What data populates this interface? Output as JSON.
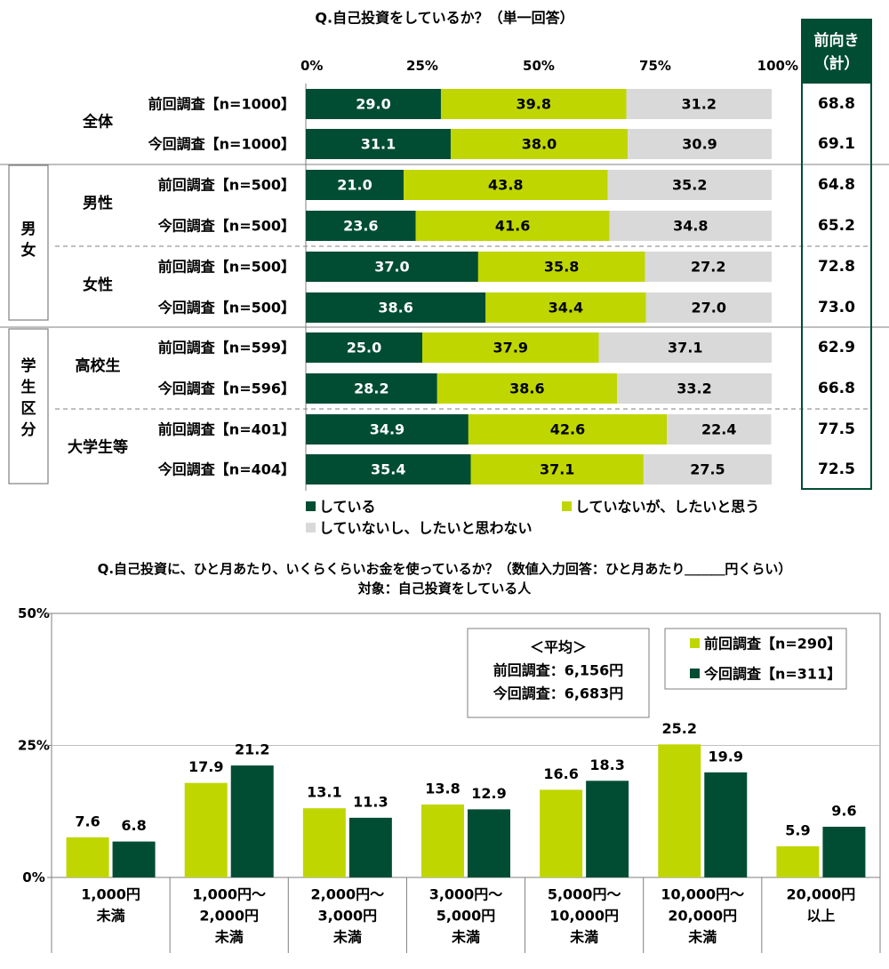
{
  "colors": {
    "dark_green": "#004d33",
    "yellow_green": "#bfd600",
    "light_gray": "#d9d9d9",
    "frame_green": "#004d33"
  },
  "chart_data": [
    {
      "type": "bar",
      "orientation": "horizontal-stacked-100",
      "title": "Q.自己投資をしているか？（単一回答）",
      "x_ticks": [
        "0%",
        "25%",
        "50%",
        "75%",
        "100%"
      ],
      "xlim": [
        0,
        100
      ],
      "legend": [
        "している",
        "していないが、したいと思う",
        "していないし、したいと思わない"
      ],
      "legend_position": "bottom",
      "positive_header": "前向き（計）",
      "groups": [
        {
          "label": "",
          "subgroups": [
            {
              "label": "全体",
              "rows": [
                {
                  "label": "前回調査【n=1000】",
                  "values": [
                    "29.0",
                    "39.8",
                    "31.2"
                  ],
                  "total": "68.8"
                },
                {
                  "label": "今回調査【n=1000】",
                  "values": [
                    "31.1",
                    "38.0",
                    "30.9"
                  ],
                  "total": "69.1"
                }
              ]
            }
          ]
        },
        {
          "label": "男女",
          "subgroups": [
            {
              "label": "男性",
              "rows": [
                {
                  "label": "前回調査【n=500】",
                  "values": [
                    "21.0",
                    "43.8",
                    "35.2"
                  ],
                  "total": "64.8"
                },
                {
                  "label": "今回調査【n=500】",
                  "values": [
                    "23.6",
                    "41.6",
                    "34.8"
                  ],
                  "total": "65.2"
                }
              ]
            },
            {
              "label": "女性",
              "rows": [
                {
                  "label": "前回調査【n=500】",
                  "values": [
                    "37.0",
                    "35.8",
                    "27.2"
                  ],
                  "total": "72.8"
                },
                {
                  "label": "今回調査【n=500】",
                  "values": [
                    "38.6",
                    "34.4",
                    "27.0"
                  ],
                  "total": "73.0"
                }
              ]
            }
          ]
        },
        {
          "label": "学生区分",
          "subgroups": [
            {
              "label": "高校生",
              "rows": [
                {
                  "label": "前回調査【n=599】",
                  "values": [
                    "25.0",
                    "37.9",
                    "37.1"
                  ],
                  "total": "62.9"
                },
                {
                  "label": "今回調査【n=596】",
                  "values": [
                    "28.2",
                    "38.6",
                    "33.2"
                  ],
                  "total": "66.8"
                }
              ]
            },
            {
              "label": "大学生等",
              "rows": [
                {
                  "label": "前回調査【n=401】",
                  "values": [
                    "34.9",
                    "42.6",
                    "22.4"
                  ],
                  "total": "77.5"
                },
                {
                  "label": "今回調査【n=404】",
                  "values": [
                    "35.4",
                    "37.1",
                    "27.5"
                  ],
                  "total": "72.5"
                }
              ]
            }
          ]
        }
      ]
    },
    {
      "type": "bar",
      "orientation": "vertical-grouped",
      "title": "Q.自己投資に、ひと月あたり、いくらくらいお金を使っているか？（数値入力回答：ひと月あたり＿＿＿円くらい）",
      "subtitle": "対象：自己投資をしている人",
      "y_ticks": [
        "50%",
        "25%",
        "0%"
      ],
      "ylim": [
        0,
        50
      ],
      "categories": [
        [
          "1,000円",
          "未満"
        ],
        [
          "1,000円～",
          "2,000円",
          "未満"
        ],
        [
          "2,000円～",
          "3,000円",
          "未満"
        ],
        [
          "3,000円～",
          "5,000円",
          "未満"
        ],
        [
          "5,000円～",
          "10,000円",
          "未満"
        ],
        [
          "10,000円～",
          "20,000円",
          "未満"
        ],
        [
          "20,000円",
          "以上"
        ]
      ],
      "series": [
        {
          "name": "前回調査【n=290】",
          "values": [
            "7.6",
            "17.9",
            "13.1",
            "13.8",
            "16.6",
            "25.2",
            "5.9"
          ]
        },
        {
          "name": "今回調査【n=311】",
          "values": [
            "6.8",
            "21.2",
            "11.3",
            "12.9",
            "18.3",
            "19.9",
            "9.6"
          ]
        }
      ],
      "average_box": [
        "＜平均＞",
        "前回調査：6,156円",
        "今回調査：6,683円"
      ],
      "legend_position": "top-right"
    }
  ]
}
